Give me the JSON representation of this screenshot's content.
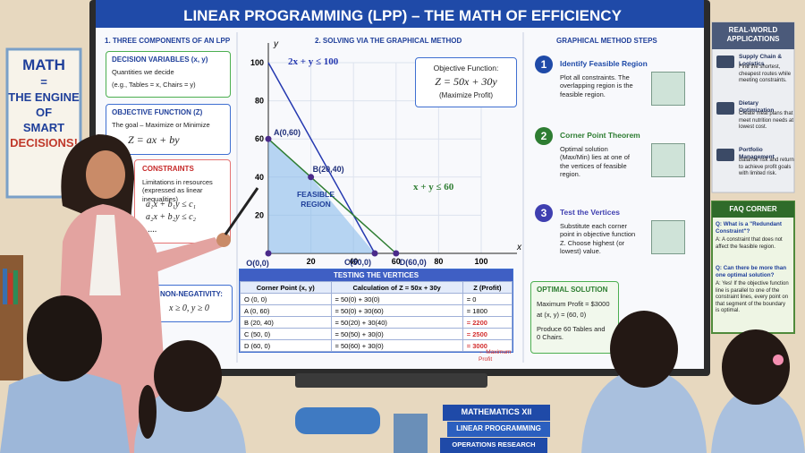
{
  "poster": {
    "lines": [
      "MATH",
      "=",
      "THE ENGINE",
      "OF",
      "SMART",
      "DECISIONS!"
    ]
  },
  "header": {
    "title": "LINEAR PROGRAMMING (LPP) – THE MATH OF EFFICIENCY"
  },
  "components": {
    "heading": "1. THREE COMPONENTS OF AN LPP",
    "decision": {
      "title": "DECISION VARIABLES (x, y)",
      "text": "Quantities we decide",
      "example": "(e.g., Tables = x, Chairs = y)"
    },
    "objective": {
      "title": "OBJECTIVE FUNCTION (Z)",
      "text": "The goal – Maximize or Minimize",
      "formula": "Z = ax + by"
    },
    "constraints": {
      "title": "CONSTRAINTS",
      "text": "Limitations in resources (expressed as linear inequalities)",
      "formulas": [
        "a₁x + b₁y ≤ c₁",
        "a₂x + b₂y ≤ c₂",
        "....."
      ]
    },
    "nonnegativity": {
      "title": "NON-NEGATIVITY:",
      "formula": "x ≥ 0, y ≥ 0"
    }
  },
  "graph": {
    "heading": "2. SOLVING VIA THE GRAPHICAL METHOD",
    "x_label": "x",
    "y_label": "y",
    "xlim": [
      0,
      100
    ],
    "ylim": [
      0,
      100
    ],
    "xticks": [
      20,
      40,
      60,
      80,
      100
    ],
    "yticks": [
      20,
      40,
      60,
      80,
      100
    ],
    "region_label": "FEASIBLE REGION",
    "constraints": [
      {
        "label": "2x + y ≤ 100",
        "color": "#2438b0",
        "points": [
          [
            0,
            100
          ],
          [
            50,
            0
          ]
        ]
      },
      {
        "label": "x + y ≤ 60",
        "color": "#2e7d32",
        "points": [
          [
            0,
            60
          ],
          [
            60,
            0
          ]
        ]
      }
    ],
    "vertices": [
      {
        "label": "O(0,0)",
        "x": 0,
        "y": 0
      },
      {
        "label": "A(0,60)",
        "x": 0,
        "y": 60
      },
      {
        "label": "B(20,40)",
        "x": 20,
        "y": 40
      },
      {
        "label": "C(50,0)",
        "x": 50,
        "y": 0
      },
      {
        "label": "D(60,0)",
        "x": 60,
        "y": 0
      }
    ],
    "objective": {
      "title": "Objective Function:",
      "formula": "Z = 50x + 30y",
      "note": "(Maximize Profit)"
    }
  },
  "table": {
    "title": "TESTING THE VERTICES",
    "headers": [
      "Corner Point (x, y)",
      "Calculation of Z = 50x + 30y",
      "Z (Profit)"
    ],
    "rows": [
      [
        "O (0, 0)",
        "= 50(0) + 30(0)",
        "= 0"
      ],
      [
        "A (0, 60)",
        "= 50(0) + 30(60)",
        "= 1800"
      ],
      [
        "B (20, 40)",
        "= 50(20) + 30(40)",
        "= 2200"
      ],
      [
        "C (50, 0)",
        "= 50(50) + 30(0)",
        "= 2500"
      ],
      [
        "D (60, 0)",
        "= 50(60) + 30(0)",
        "= 3000"
      ]
    ],
    "note": "← Maximum Profit"
  },
  "steps": {
    "heading": "GRAPHICAL METHOD STEPS",
    "items": [
      {
        "number": "1",
        "title": "Identify Feasible Region",
        "text": "Plot all constraints. The overlapping region is the feasible region."
      },
      {
        "number": "2",
        "title": "Corner Point Theorem",
        "text": "Optimal solution (Max/Min) lies at one of the vertices of feasible region."
      },
      {
        "number": "3",
        "title": "Test the Vertices",
        "text": "Substitute each corner point in objective function Z. Choose highest (or lowest) value."
      }
    ]
  },
  "optimal": {
    "title": "OPTIMAL SOLUTION",
    "profit": "Maximum Profit = $3000",
    "point": "at (x, y) = (60, 0)",
    "action": "Produce 60 Tables and 0 Chairs."
  },
  "applications": {
    "title": "REAL-WORLD APPLICATIONS",
    "items": [
      {
        "title": "Supply Chain & Logistics",
        "text": "Find the shortest, cheapest routes while meeting constraints."
      },
      {
        "title": "Dietary Optimization",
        "text": "Create meal plans that meet nutrition needs at lowest cost."
      },
      {
        "title": "Portfolio Management",
        "text": "Balance risk and return to achieve profit goals with limited risk."
      }
    ]
  },
  "faq": {
    "title": "FAQ CORNER",
    "items": [
      {
        "q": "Q: What is a \"Redundant Constraint\"?",
        "a": "A: A constraint that does not affect the feasible region."
      },
      {
        "q": "Q: Can there be more than one optimal solution?",
        "a": "A: Yes! If the objective function line is parallel to one of the constraint lines, every point on that segment of the boundary is optimal."
      }
    ]
  },
  "books": [
    "MATHEMATICS XII",
    "LINEAR PROGRAMMING",
    "OPERATIONS RESEARCH"
  ]
}
